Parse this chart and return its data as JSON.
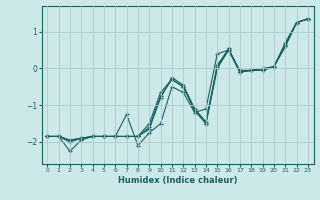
{
  "xlabel": "Humidex (Indice chaleur)",
  "ylabel": "",
  "bg_color": "#cce8e8",
  "grid_color": "#aacccc",
  "line_color": "#1a6060",
  "marker": "+",
  "xlim": [
    -0.5,
    23.5
  ],
  "ylim": [
    -2.6,
    1.7
  ],
  "yticks": [
    -2,
    -1,
    0,
    1
  ],
  "xticks": [
    0,
    1,
    2,
    3,
    4,
    5,
    6,
    7,
    8,
    9,
    10,
    11,
    12,
    13,
    14,
    15,
    16,
    17,
    18,
    19,
    20,
    21,
    22,
    23
  ],
  "series": [
    [
      [
        0,
        -1.85
      ],
      [
        1,
        -1.85
      ],
      [
        2,
        -2.25
      ],
      [
        3,
        -1.95
      ],
      [
        4,
        -1.85
      ],
      [
        5,
        -1.85
      ],
      [
        6,
        -1.85
      ],
      [
        7,
        -1.25
      ],
      [
        8,
        -2.1
      ],
      [
        9,
        -1.75
      ],
      [
        10,
        -1.5
      ],
      [
        11,
        -0.5
      ],
      [
        12,
        -0.65
      ],
      [
        13,
        -1.2
      ],
      [
        14,
        -1.1
      ],
      [
        15,
        0.4
      ],
      [
        16,
        0.5
      ],
      [
        17,
        -0.05
      ],
      [
        18,
        -0.05
      ],
      [
        19,
        -0.05
      ],
      [
        20,
        0.05
      ],
      [
        21,
        0.7
      ],
      [
        22,
        1.25
      ],
      [
        23,
        1.35
      ]
    ],
    [
      [
        0,
        -1.85
      ],
      [
        1,
        -1.85
      ],
      [
        2,
        -2.0
      ],
      [
        3,
        -1.9
      ],
      [
        4,
        -1.85
      ],
      [
        5,
        -1.85
      ],
      [
        6,
        -1.85
      ],
      [
        7,
        -1.85
      ],
      [
        8,
        -1.85
      ],
      [
        9,
        -1.5
      ],
      [
        10,
        -0.65
      ],
      [
        11,
        -0.3
      ],
      [
        12,
        -0.5
      ],
      [
        13,
        -1.1
      ],
      [
        14,
        -1.45
      ],
      [
        15,
        0.1
      ],
      [
        16,
        0.5
      ],
      [
        17,
        -0.1
      ],
      [
        18,
        -0.05
      ],
      [
        19,
        -0.0
      ],
      [
        20,
        0.05
      ],
      [
        21,
        0.65
      ],
      [
        22,
        1.25
      ],
      [
        23,
        1.35
      ]
    ],
    [
      [
        0,
        -1.85
      ],
      [
        1,
        -1.85
      ],
      [
        2,
        -1.95
      ],
      [
        3,
        -1.9
      ],
      [
        4,
        -1.85
      ],
      [
        5,
        -1.85
      ],
      [
        6,
        -1.85
      ],
      [
        7,
        -1.85
      ],
      [
        8,
        -1.85
      ],
      [
        9,
        -1.6
      ],
      [
        10,
        -0.75
      ],
      [
        11,
        -0.3
      ],
      [
        12,
        -0.5
      ],
      [
        13,
        -1.15
      ],
      [
        14,
        -1.5
      ],
      [
        15,
        0.05
      ],
      [
        16,
        0.55
      ],
      [
        17,
        -0.1
      ],
      [
        18,
        -0.05
      ],
      [
        19,
        -0.05
      ],
      [
        20,
        0.05
      ],
      [
        21,
        0.6
      ],
      [
        22,
        1.25
      ],
      [
        23,
        1.35
      ]
    ],
    [
      [
        0,
        -1.85
      ],
      [
        1,
        -1.85
      ],
      [
        2,
        -1.95
      ],
      [
        3,
        -1.9
      ],
      [
        4,
        -1.85
      ],
      [
        5,
        -1.85
      ],
      [
        6,
        -1.85
      ],
      [
        7,
        -1.85
      ],
      [
        8,
        -1.85
      ],
      [
        9,
        -1.65
      ],
      [
        10,
        -0.8
      ],
      [
        11,
        -0.25
      ],
      [
        12,
        -0.45
      ],
      [
        13,
        -1.1
      ],
      [
        14,
        -1.5
      ],
      [
        15,
        0.0
      ],
      [
        16,
        0.5
      ],
      [
        17,
        -0.1
      ],
      [
        18,
        -0.05
      ],
      [
        19,
        -0.05
      ],
      [
        20,
        0.05
      ],
      [
        21,
        0.6
      ],
      [
        22,
        1.25
      ],
      [
        23,
        1.35
      ]
    ]
  ]
}
